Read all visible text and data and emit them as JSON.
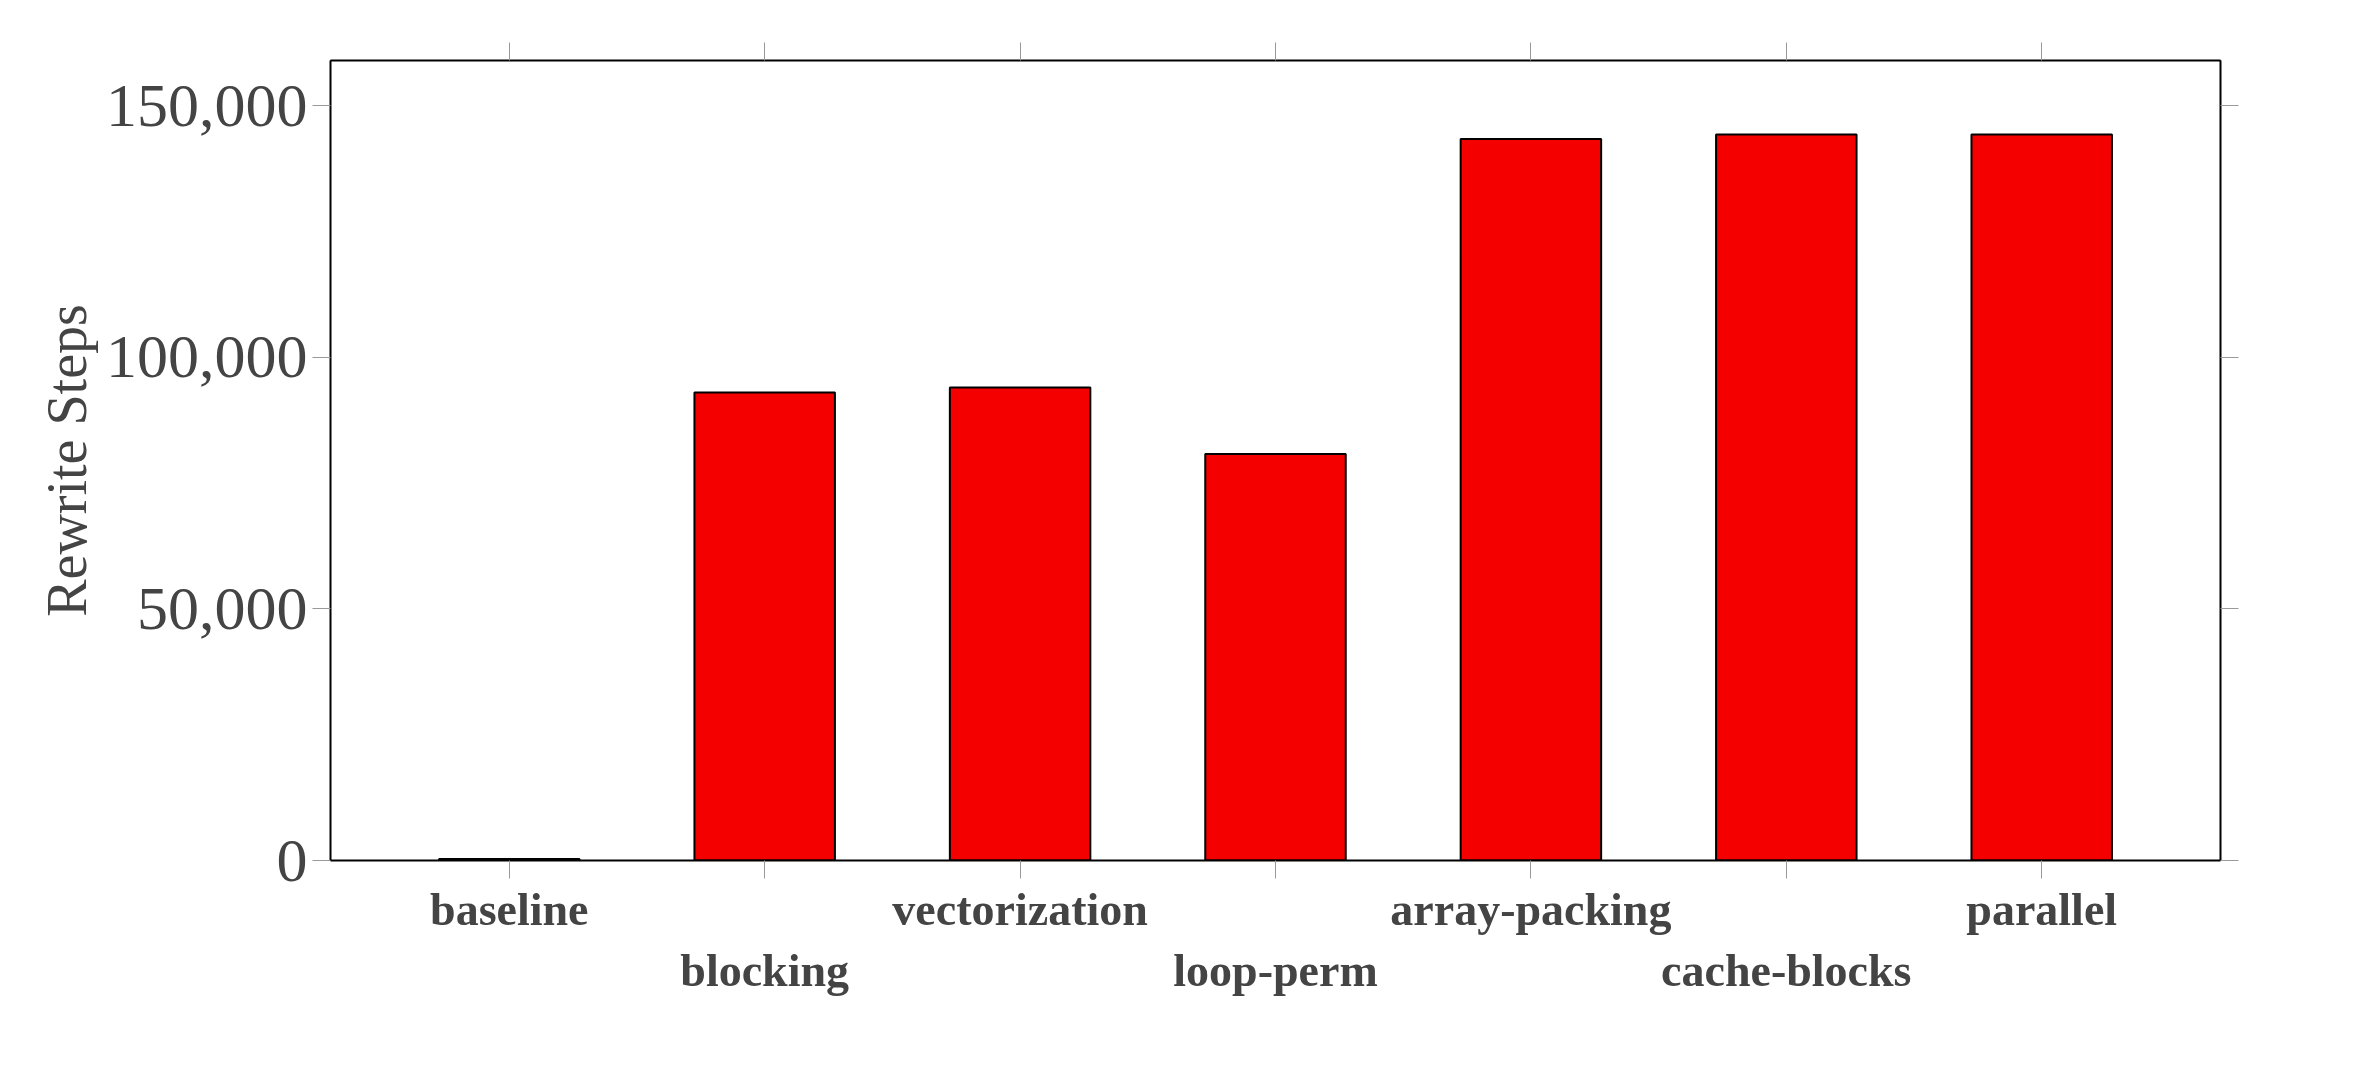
{
  "chart_data": {
    "type": "bar",
    "ylabel": "Rewrite Steps",
    "categories": [
      "baseline",
      "blocking",
      "vectorization",
      "loop-perm",
      "array-packing",
      "cache-blocks",
      "parallel"
    ],
    "values": [
      300,
      93000,
      94000,
      80800,
      143400,
      144300,
      144300
    ],
    "color": "#f50000",
    "ylim": [
      0,
      159000
    ],
    "yticks": [
      {
        "value": 0,
        "label": "0"
      },
      {
        "value": 50000,
        "label": "50,000"
      },
      {
        "value": 100000,
        "label": "100,000"
      },
      {
        "value": 150000,
        "label": "150,000"
      }
    ],
    "grid": false
  }
}
